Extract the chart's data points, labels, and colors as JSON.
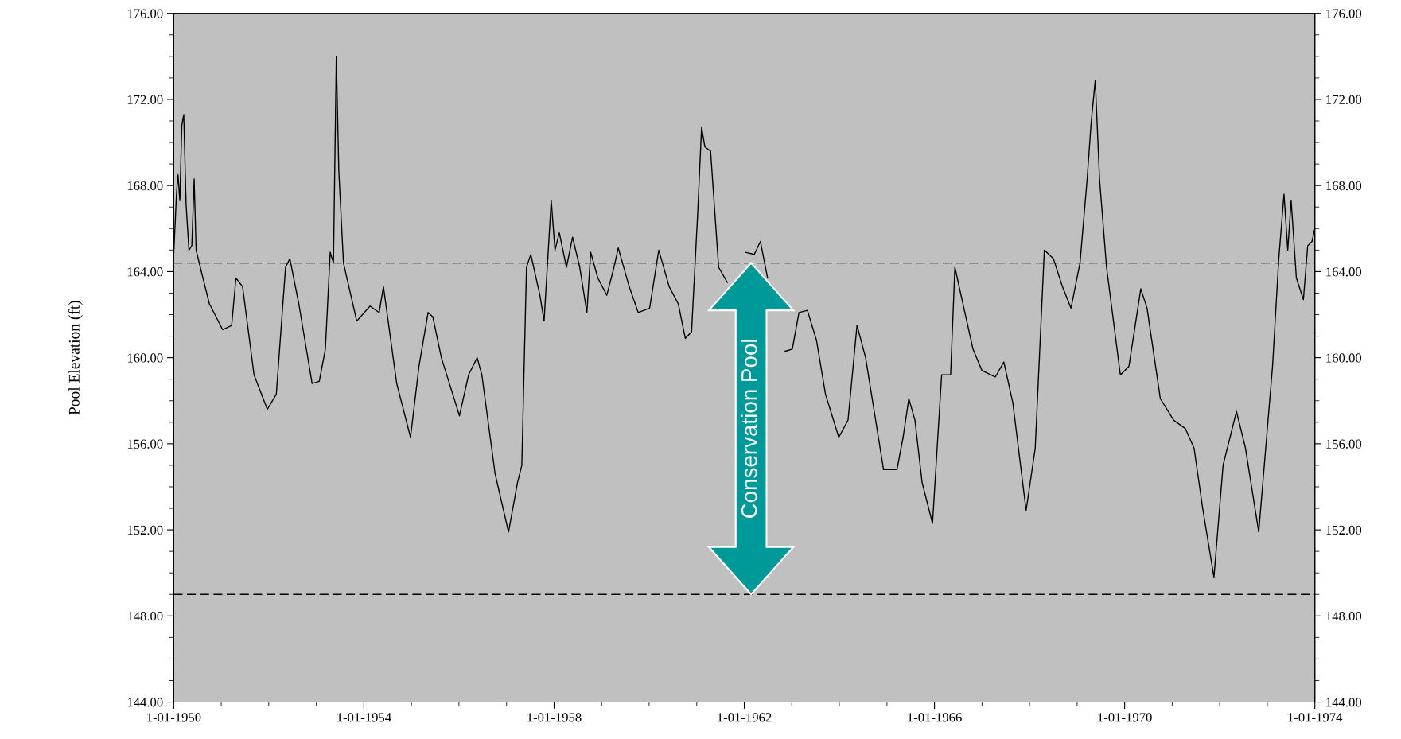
{
  "chart_data": {
    "type": "line",
    "ylabel": "Pool Elevation (ft)",
    "x": [
      "1950-01-01",
      "1950-01-23",
      "1950-02-03",
      "1950-02-17",
      "1950-03-04",
      "1950-03-19",
      "1950-04-06",
      "1950-04-28",
      "1950-05-20",
      "1950-06-07",
      "1950-06-22",
      "1950-07-24",
      "1950-10-02",
      "1951-01-12",
      "1951-03-22",
      "1951-04-24",
      "1951-06-14",
      "1951-09-10",
      "1951-12-21",
      "1952-02-28",
      "1952-05-09",
      "1952-06-11",
      "1952-08-19",
      "1952-11-29",
      "1953-01-23",
      "1953-03-11",
      "1953-04-17",
      "1953-05-12",
      "1953-06-03",
      "1953-06-22",
      "1953-07-28",
      "1953-11-07",
      "1954-02-17",
      "1954-04-28",
      "1954-05-31",
      "1954-09-10",
      "1954-12-25",
      "1955-02-28",
      "1955-05-09",
      "1955-06-14",
      "1955-08-19",
      "1956-01-05",
      "1956-03-15",
      "1956-05-20",
      "1956-06-25",
      "1956-10-05",
      "1957-01-16",
      "1957-03-26",
      "1957-04-28",
      "1957-06-03",
      "1957-07-06",
      "1957-09-14",
      "1957-10-16",
      "1957-12-10",
      "1958-01-08",
      "1958-02-10",
      "1958-04-06",
      "1958-05-23",
      "1958-07-17",
      "1958-09-10",
      "1958-10-09",
      "1958-12-03",
      "1959-02-10",
      "1959-04-06",
      "1959-05-09",
      "1959-08-01",
      "1959-10-09",
      "1960-01-05",
      "1960-03-15",
      "1960-06-03",
      "1960-08-12",
      "1960-10-05",
      "1960-11-22",
      "1961-01-08",
      "1961-02-07",
      "1961-03-04",
      "1961-04-17",
      "1961-06-18",
      "1961-08-23",
      "1961-10-31",
      "1962-01-08",
      "1962-03-19",
      "1962-05-05",
      "1962-06-29",
      "1962-09-06",
      "1962-11-11",
      "1963-01-05",
      "1963-02-25",
      "1963-05-01",
      "1963-07-10",
      "1963-09-17",
      "1963-12-28",
      "1964-03-08",
      "1964-05-16",
      "1964-07-21",
      "1964-12-06",
      "1965-03-19",
      "1965-05-05",
      "1965-06-18",
      "1965-08-04",
      "1965-09-28",
      "1965-12-17",
      "1966-02-25",
      "1966-05-05",
      "1966-06-07",
      "1966-08-15",
      "1966-10-24",
      "1967-01-01",
      "1967-04-13",
      "1967-06-18",
      "1967-08-26",
      "1967-12-06",
      "1968-02-14",
      "1968-04-24",
      "1968-07-03",
      "1968-09-10",
      "1968-11-15",
      "1969-01-23",
      "1969-03-19",
      "1969-04-17",
      "1969-05-20",
      "1969-06-22",
      "1969-08-15",
      "1969-11-29",
      "1970-02-03",
      "1970-05-05",
      "1970-06-22",
      "1970-10-02",
      "1971-01-12",
      "1971-04-13",
      "1971-06-18",
      "1971-08-26",
      "1971-11-18",
      "1972-01-27",
      "1972-05-09",
      "1972-07-17",
      "1972-10-27",
      "1973-02-10",
      "1973-03-30",
      "1973-05-09",
      "1973-06-07",
      "1973-07-03",
      "1973-08-12",
      "1973-10-05",
      "1973-11-07",
      "1973-12-10",
      "1974-01-01"
    ],
    "series": [
      {
        "color": "#000000",
        "values": [
          164.8,
          167.7,
          168.5,
          167.3,
          170.8,
          171.3,
          167.1,
          165.0,
          165.2,
          168.3,
          165.0,
          164.2,
          162.5,
          161.3,
          161.5,
          163.7,
          163.3,
          159.2,
          157.6,
          158.3,
          164.2,
          164.6,
          162.5,
          158.8,
          158.9,
          160.4,
          164.9,
          164.4,
          174.0,
          168.7,
          164.4,
          161.7,
          162.4,
          162.1,
          163.3,
          158.8,
          156.3,
          159.6,
          162.1,
          161.9,
          160.0,
          157.3,
          159.2,
          160.0,
          159.2,
          154.6,
          151.9,
          154.2,
          155.0,
          164.2,
          164.8,
          162.9,
          161.7,
          167.3,
          165.0,
          165.8,
          164.2,
          165.6,
          164.2,
          162.1,
          164.9,
          163.7,
          162.9,
          164.2,
          165.1,
          163.3,
          162.1,
          162.3,
          165.0,
          163.3,
          162.5,
          160.9,
          161.2,
          166.7,
          170.7,
          169.8,
          169.6,
          164.2,
          163.5,
          null,
          164.9,
          164.8,
          165.4,
          163.7,
          null,
          160.3,
          160.4,
          162.1,
          162.2,
          160.8,
          158.3,
          156.3,
          157.1,
          161.5,
          160.0,
          154.8,
          154.8,
          156.3,
          158.1,
          157.1,
          154.2,
          152.3,
          159.2,
          159.2,
          164.2,
          162.3,
          160.4,
          159.4,
          159.1,
          159.8,
          157.9,
          152.9,
          155.8,
          165.0,
          164.6,
          163.3,
          162.3,
          164.4,
          168.3,
          170.8,
          172.9,
          168.3,
          164.2,
          159.2,
          159.6,
          163.2,
          162.3,
          158.1,
          157.1,
          156.7,
          155.8,
          152.9,
          149.8,
          155.0,
          157.5,
          155.8,
          151.9,
          159.6,
          164.6,
          167.6,
          165.0,
          167.3,
          163.7,
          162.7,
          165.2,
          165.4,
          166.0
        ]
      }
    ],
    "xlim": [
      "1950-01-01",
      "1974-01-01"
    ],
    "xticks": [
      {
        "value": "1950-01-01",
        "label": "1-01-1950"
      },
      {
        "value": "1951-01-01",
        "label": null
      },
      {
        "value": "1952-01-01",
        "label": null
      },
      {
        "value": "1953-01-01",
        "label": null
      },
      {
        "value": "1954-01-01",
        "label": "1-01-1954"
      },
      {
        "value": "1955-01-01",
        "label": null
      },
      {
        "value": "1956-01-01",
        "label": null
      },
      {
        "value": "1957-01-01",
        "label": null
      },
      {
        "value": "1958-01-01",
        "label": "1-01-1958"
      },
      {
        "value": "1959-01-01",
        "label": null
      },
      {
        "value": "1960-01-01",
        "label": null
      },
      {
        "value": "1961-01-01",
        "label": null
      },
      {
        "value": "1962-01-01",
        "label": "1-01-1962"
      },
      {
        "value": "1963-01-01",
        "label": null
      },
      {
        "value": "1964-01-01",
        "label": null
      },
      {
        "value": "1965-01-01",
        "label": null
      },
      {
        "value": "1966-01-01",
        "label": "1-01-1966"
      },
      {
        "value": "1967-01-01",
        "label": null
      },
      {
        "value": "1968-01-01",
        "label": null
      },
      {
        "value": "1969-01-01",
        "label": null
      },
      {
        "value": "1970-01-01",
        "label": "1-01-1970"
      },
      {
        "value": "1971-01-01",
        "label": null
      },
      {
        "value": "1972-01-01",
        "label": null
      },
      {
        "value": "1973-01-01",
        "label": null
      },
      {
        "value": "1974-01-01",
        "label": "1-01-1974"
      }
    ],
    "ylim": [
      144,
      176
    ],
    "yticks": [
      {
        "value": 144,
        "label": "144.00"
      },
      {
        "value": 145,
        "label": null
      },
      {
        "value": 146,
        "label": null
      },
      {
        "value": 147,
        "label": null
      },
      {
        "value": 148,
        "label": "148.00"
      },
      {
        "value": 149,
        "label": null
      },
      {
        "value": 150,
        "label": null
      },
      {
        "value": 151,
        "label": null
      },
      {
        "value": 152,
        "label": "152.00"
      },
      {
        "value": 153,
        "label": null
      },
      {
        "value": 154,
        "label": null
      },
      {
        "value": 155,
        "label": null
      },
      {
        "value": 156,
        "label": "156.00"
      },
      {
        "value": 157,
        "label": null
      },
      {
        "value": 158,
        "label": null
      },
      {
        "value": 159,
        "label": null
      },
      {
        "value": 160,
        "label": "160.00"
      },
      {
        "value": 161,
        "label": null
      },
      {
        "value": 162,
        "label": null
      },
      {
        "value": 163,
        "label": null
      },
      {
        "value": 164,
        "label": "164.00"
      },
      {
        "value": 165,
        "label": null
      },
      {
        "value": 166,
        "label": null
      },
      {
        "value": 167,
        "label": null
      },
      {
        "value": 168,
        "label": "168.00"
      },
      {
        "value": 169,
        "label": null
      },
      {
        "value": 170,
        "label": null
      },
      {
        "value": 171,
        "label": null
      },
      {
        "value": 172,
        "label": "172.00"
      },
      {
        "value": 173,
        "label": null
      },
      {
        "value": 174,
        "label": null
      },
      {
        "value": 175,
        "label": null
      },
      {
        "value": 176,
        "label": "176.00"
      }
    ],
    "y2lim": [
      144,
      176
    ],
    "y2ticks": [
      {
        "value": 144,
        "label": "144.00"
      },
      {
        "value": 145,
        "label": null
      },
      {
        "value": 146,
        "label": null
      },
      {
        "value": 147,
        "label": null
      },
      {
        "value": 148,
        "label": "148.00"
      },
      {
        "value": 149,
        "label": null
      },
      {
        "value": 150,
        "label": null
      },
      {
        "value": 151,
        "label": null
      },
      {
        "value": 152,
        "label": "152.00"
      },
      {
        "value": 153,
        "label": null
      },
      {
        "value": 154,
        "label": null
      },
      {
        "value": 155,
        "label": null
      },
      {
        "value": 156,
        "label": "156.00"
      },
      {
        "value": 157,
        "label": null
      },
      {
        "value": 158,
        "label": null
      },
      {
        "value": 159,
        "label": null
      },
      {
        "value": 160,
        "label": "160.00"
      },
      {
        "value": 161,
        "label": null
      },
      {
        "value": 162,
        "label": null
      },
      {
        "value": 163,
        "label": null
      },
      {
        "value": 164,
        "label": "164.00"
      },
      {
        "value": 165,
        "label": null
      },
      {
        "value": 166,
        "label": null
      },
      {
        "value": 167,
        "label": null
      },
      {
        "value": 168,
        "label": "168.00"
      },
      {
        "value": 169,
        "label": null
      },
      {
        "value": 170,
        "label": null
      },
      {
        "value": 171,
        "label": null
      },
      {
        "value": 172,
        "label": "172.00"
      },
      {
        "value": 173,
        "label": null
      },
      {
        "value": 174,
        "label": null
      },
      {
        "value": 175,
        "label": null
      },
      {
        "value": 176,
        "label": "176.00"
      }
    ],
    "ref_lines": [
      {
        "axis": "y",
        "value": 164.4,
        "color": "#000000",
        "line_style": "dashed"
      },
      {
        "axis": "y",
        "value": 149,
        "color": "#000000",
        "line_style": "dashed"
      }
    ],
    "annotations": [
      "Conservation Pool"
    ],
    "grid": false,
    "legend": false,
    "marker": "none",
    "line_style": "solid"
  }
}
